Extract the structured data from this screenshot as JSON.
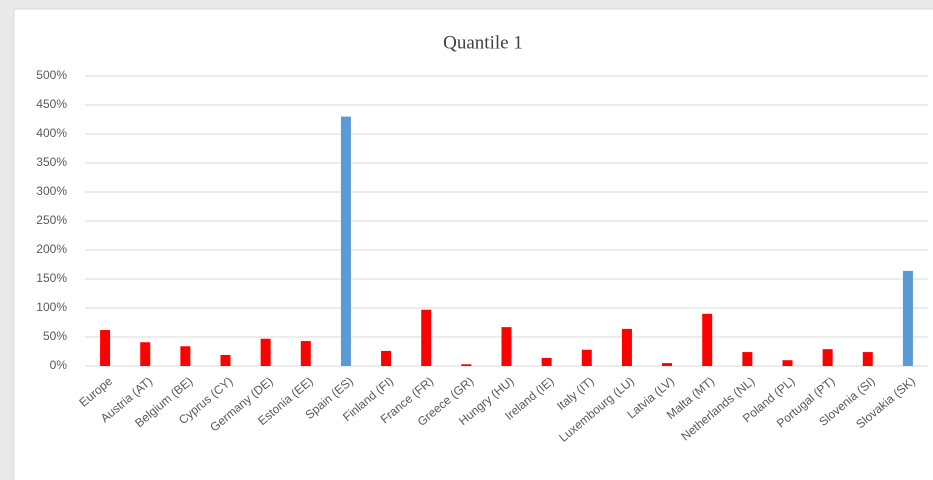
{
  "chart_data": {
    "type": "bar",
    "title": "Quantile 1",
    "categories": [
      "Europe",
      "Austria (AT)",
      "Belgium (BE)",
      "Cyprus (CY)",
      "Germany (DE)",
      "Estonia (EE)",
      "Spain (ES)",
      "Finland (FI)",
      "France (FR)",
      "Greece (GR)",
      "Hungry (HU)",
      "Ireland (IE)",
      "Italy (IT)",
      "Luxembourg (LU)",
      "Latvia (LV)",
      "Malta (MT)",
      "Netherlands (NL)",
      "Poland (PL)",
      "Portugal (PT)",
      "Slovenia (SI)",
      "Slovakia (SK)"
    ],
    "values": [
      62,
      41,
      34,
      19,
      47,
      43,
      430,
      26,
      97,
      3,
      67,
      14,
      28,
      64,
      5,
      90,
      24,
      10,
      29,
      24,
      164
    ],
    "colors": [
      "#ff0000",
      "#ff0000",
      "#ff0000",
      "#ff0000",
      "#ff0000",
      "#ff0000",
      "#5b9bd5",
      "#ff0000",
      "#ff0000",
      "#ff0000",
      "#ff0000",
      "#ff0000",
      "#ff0000",
      "#ff0000",
      "#ff0000",
      "#ff0000",
      "#ff0000",
      "#ff0000",
      "#ff0000",
      "#ff0000",
      "#5b9bd5"
    ],
    "ylim": [
      0,
      500
    ],
    "yticks": [
      {
        "value": 0,
        "label": "0%"
      },
      {
        "value": 50,
        "label": "50%"
      },
      {
        "value": 100,
        "label": "100%"
      },
      {
        "value": 150,
        "label": "150%"
      },
      {
        "value": 200,
        "label": "200%"
      },
      {
        "value": 250,
        "label": "250%"
      },
      {
        "value": 300,
        "label": "300%"
      },
      {
        "value": 350,
        "label": "350%"
      },
      {
        "value": 400,
        "label": "400%"
      },
      {
        "value": 450,
        "label": "450%"
      },
      {
        "value": 500,
        "label": "500%"
      }
    ],
    "grid": true
  }
}
